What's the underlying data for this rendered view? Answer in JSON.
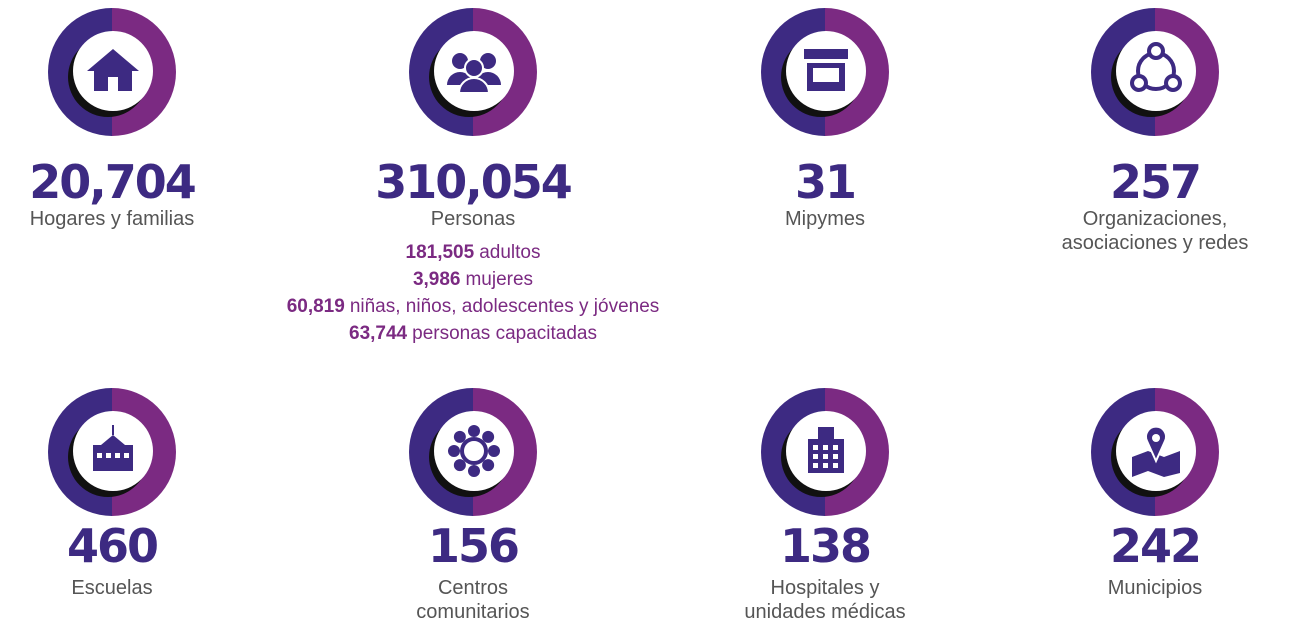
{
  "items": [
    {
      "number": "20,704",
      "label": [
        "Hogares y familias"
      ]
    },
    {
      "number": "310,054",
      "label": [
        "Personas"
      ],
      "details": [
        {
          "value": "181,505",
          "text": "adultos"
        },
        {
          "value": "3,986",
          "text": "mujeres"
        },
        {
          "value": "60,819",
          "text": "niñas, niños, adolescentes y jóvenes"
        },
        {
          "value": "63,744",
          "text": "personas capacitadas"
        }
      ]
    },
    {
      "number": "31",
      "label": [
        "Mipymes"
      ]
    },
    {
      "number": "257",
      "label": [
        "Organizaciones,",
        "asociaciones y redes"
      ]
    },
    {
      "number": "460",
      "label": [
        "Escuelas"
      ]
    },
    {
      "number": "156",
      "label": [
        "Centros",
        "comunitarios"
      ]
    },
    {
      "number": "138",
      "label": [
        "Hospitales y",
        "unidades médicas"
      ]
    },
    {
      "number": "242",
      "label": [
        "Municipios"
      ]
    }
  ]
}
